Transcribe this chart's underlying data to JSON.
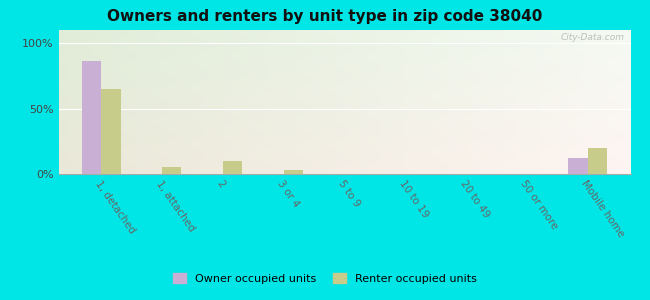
{
  "title": "Owners and renters by unit type in zip code 38040",
  "categories": [
    "1, detached",
    "1, attached",
    "2",
    "3 or 4",
    "5 to 9",
    "10 to 19",
    "20 to 49",
    "50 or more",
    "Mobile home"
  ],
  "owner_values": [
    86,
    0,
    0,
    0,
    0,
    0,
    0,
    0,
    12
  ],
  "renter_values": [
    65,
    5,
    10,
    3,
    0,
    0,
    0,
    0,
    20
  ],
  "owner_color": "#c9afd4",
  "renter_color": "#c8cc8a",
  "background_color": "#00e5e5",
  "yticks": [
    0,
    50,
    100
  ],
  "ylim": [
    0,
    110
  ],
  "watermark": "City-Data.com",
  "legend_owner": "Owner occupied units",
  "legend_renter": "Renter occupied units",
  "bar_width": 0.32,
  "title_fontsize": 11
}
